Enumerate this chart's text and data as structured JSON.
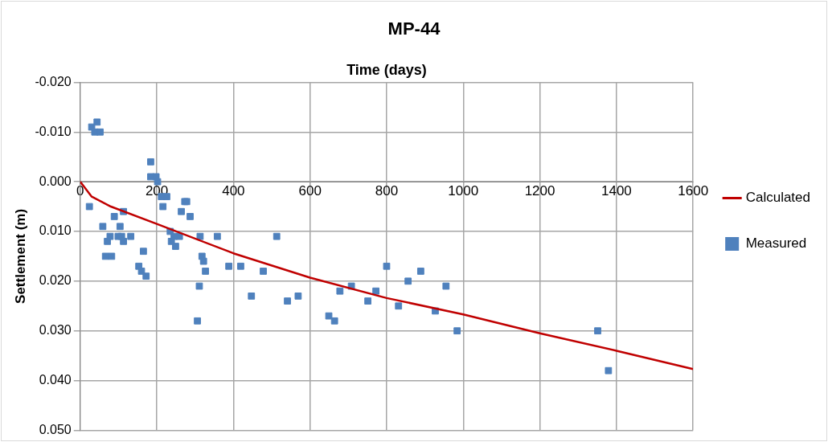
{
  "chart_data": {
    "type": "scatter",
    "title": "MP-44",
    "xlabel": "Time (days)",
    "ylabel": "Settlement (m)",
    "xlim": [
      0,
      1600
    ],
    "xticks": [
      0,
      200,
      400,
      600,
      800,
      1000,
      1200,
      1400,
      1600
    ],
    "ylim": [
      0.05,
      -0.02
    ],
    "yticks": [
      {
        "value": -0.02,
        "label": "-0.020"
      },
      {
        "value": -0.01,
        "label": "-0.010"
      },
      {
        "value": 0,
        "label": "0.000"
      },
      {
        "value": 0.01,
        "label": "0.010"
      },
      {
        "value": 0.02,
        "label": "0.020"
      },
      {
        "value": 0.03,
        "label": "0.030"
      },
      {
        "value": 0.04,
        "label": "0.040"
      },
      {
        "value": 0.05,
        "label": "0.050"
      }
    ],
    "grid": true,
    "legend": "right",
    "marker": "square",
    "series": [
      {
        "name": "Calculated",
        "type": "line",
        "color": "#c00000",
        "marker": "none",
        "x": [
          0,
          10,
          20,
          30,
          80,
          200,
          400,
          600,
          800,
          1000,
          1200,
          1400,
          1600
        ],
        "values": [
          0,
          0.001,
          0.002,
          0.003,
          0.005,
          0.0085,
          0.0144,
          0.0193,
          0.0234,
          0.0267,
          0.0305,
          0.034,
          0.0377
        ]
      },
      {
        "name": "Measured",
        "color": "#4f81bd",
        "x": [
          24,
          30,
          38,
          44,
          52,
          59,
          66,
          71,
          82,
          78,
          89,
          99,
          104,
          108,
          113,
          113,
          132,
          153,
          160,
          165,
          172,
          184,
          184,
          198,
          202,
          212,
          216,
          226,
          235,
          238,
          245,
          249,
          259,
          264,
          273,
          278,
          287,
          306,
          311,
          313,
          318,
          322,
          327,
          358,
          388,
          419,
          447,
          478,
          513,
          541,
          569,
          649,
          664,
          678,
          708,
          751,
          772,
          800,
          831,
          856,
          889,
          927,
          955,
          984,
          1351,
          1379
        ],
        "values": [
          0.005,
          -0.011,
          -0.01,
          -0.012,
          -0.01,
          0.009,
          0.015,
          0.012,
          0.015,
          0.011,
          0.007,
          0.011,
          0.009,
          0.011,
          0.006,
          0.012,
          0.011,
          0.017,
          0.018,
          0.014,
          0.019,
          -0.004,
          -0.001,
          -0.001,
          0,
          0.003,
          0.005,
          0.003,
          0.01,
          0.012,
          0.011,
          0.013,
          0.011,
          0.006,
          0.004,
          0.004,
          0.007,
          0.028,
          0.021,
          0.011,
          0.015,
          0.016,
          0.018,
          0.011,
          0.017,
          0.017,
          0.023,
          0.018,
          0.011,
          0.024,
          0.023,
          0.027,
          0.028,
          0.022,
          0.021,
          0.024,
          0.022,
          0.017,
          0.025,
          0.02,
          0.018,
          0.026,
          0.021,
          0.03,
          0.03,
          0.038
        ]
      }
    ]
  }
}
